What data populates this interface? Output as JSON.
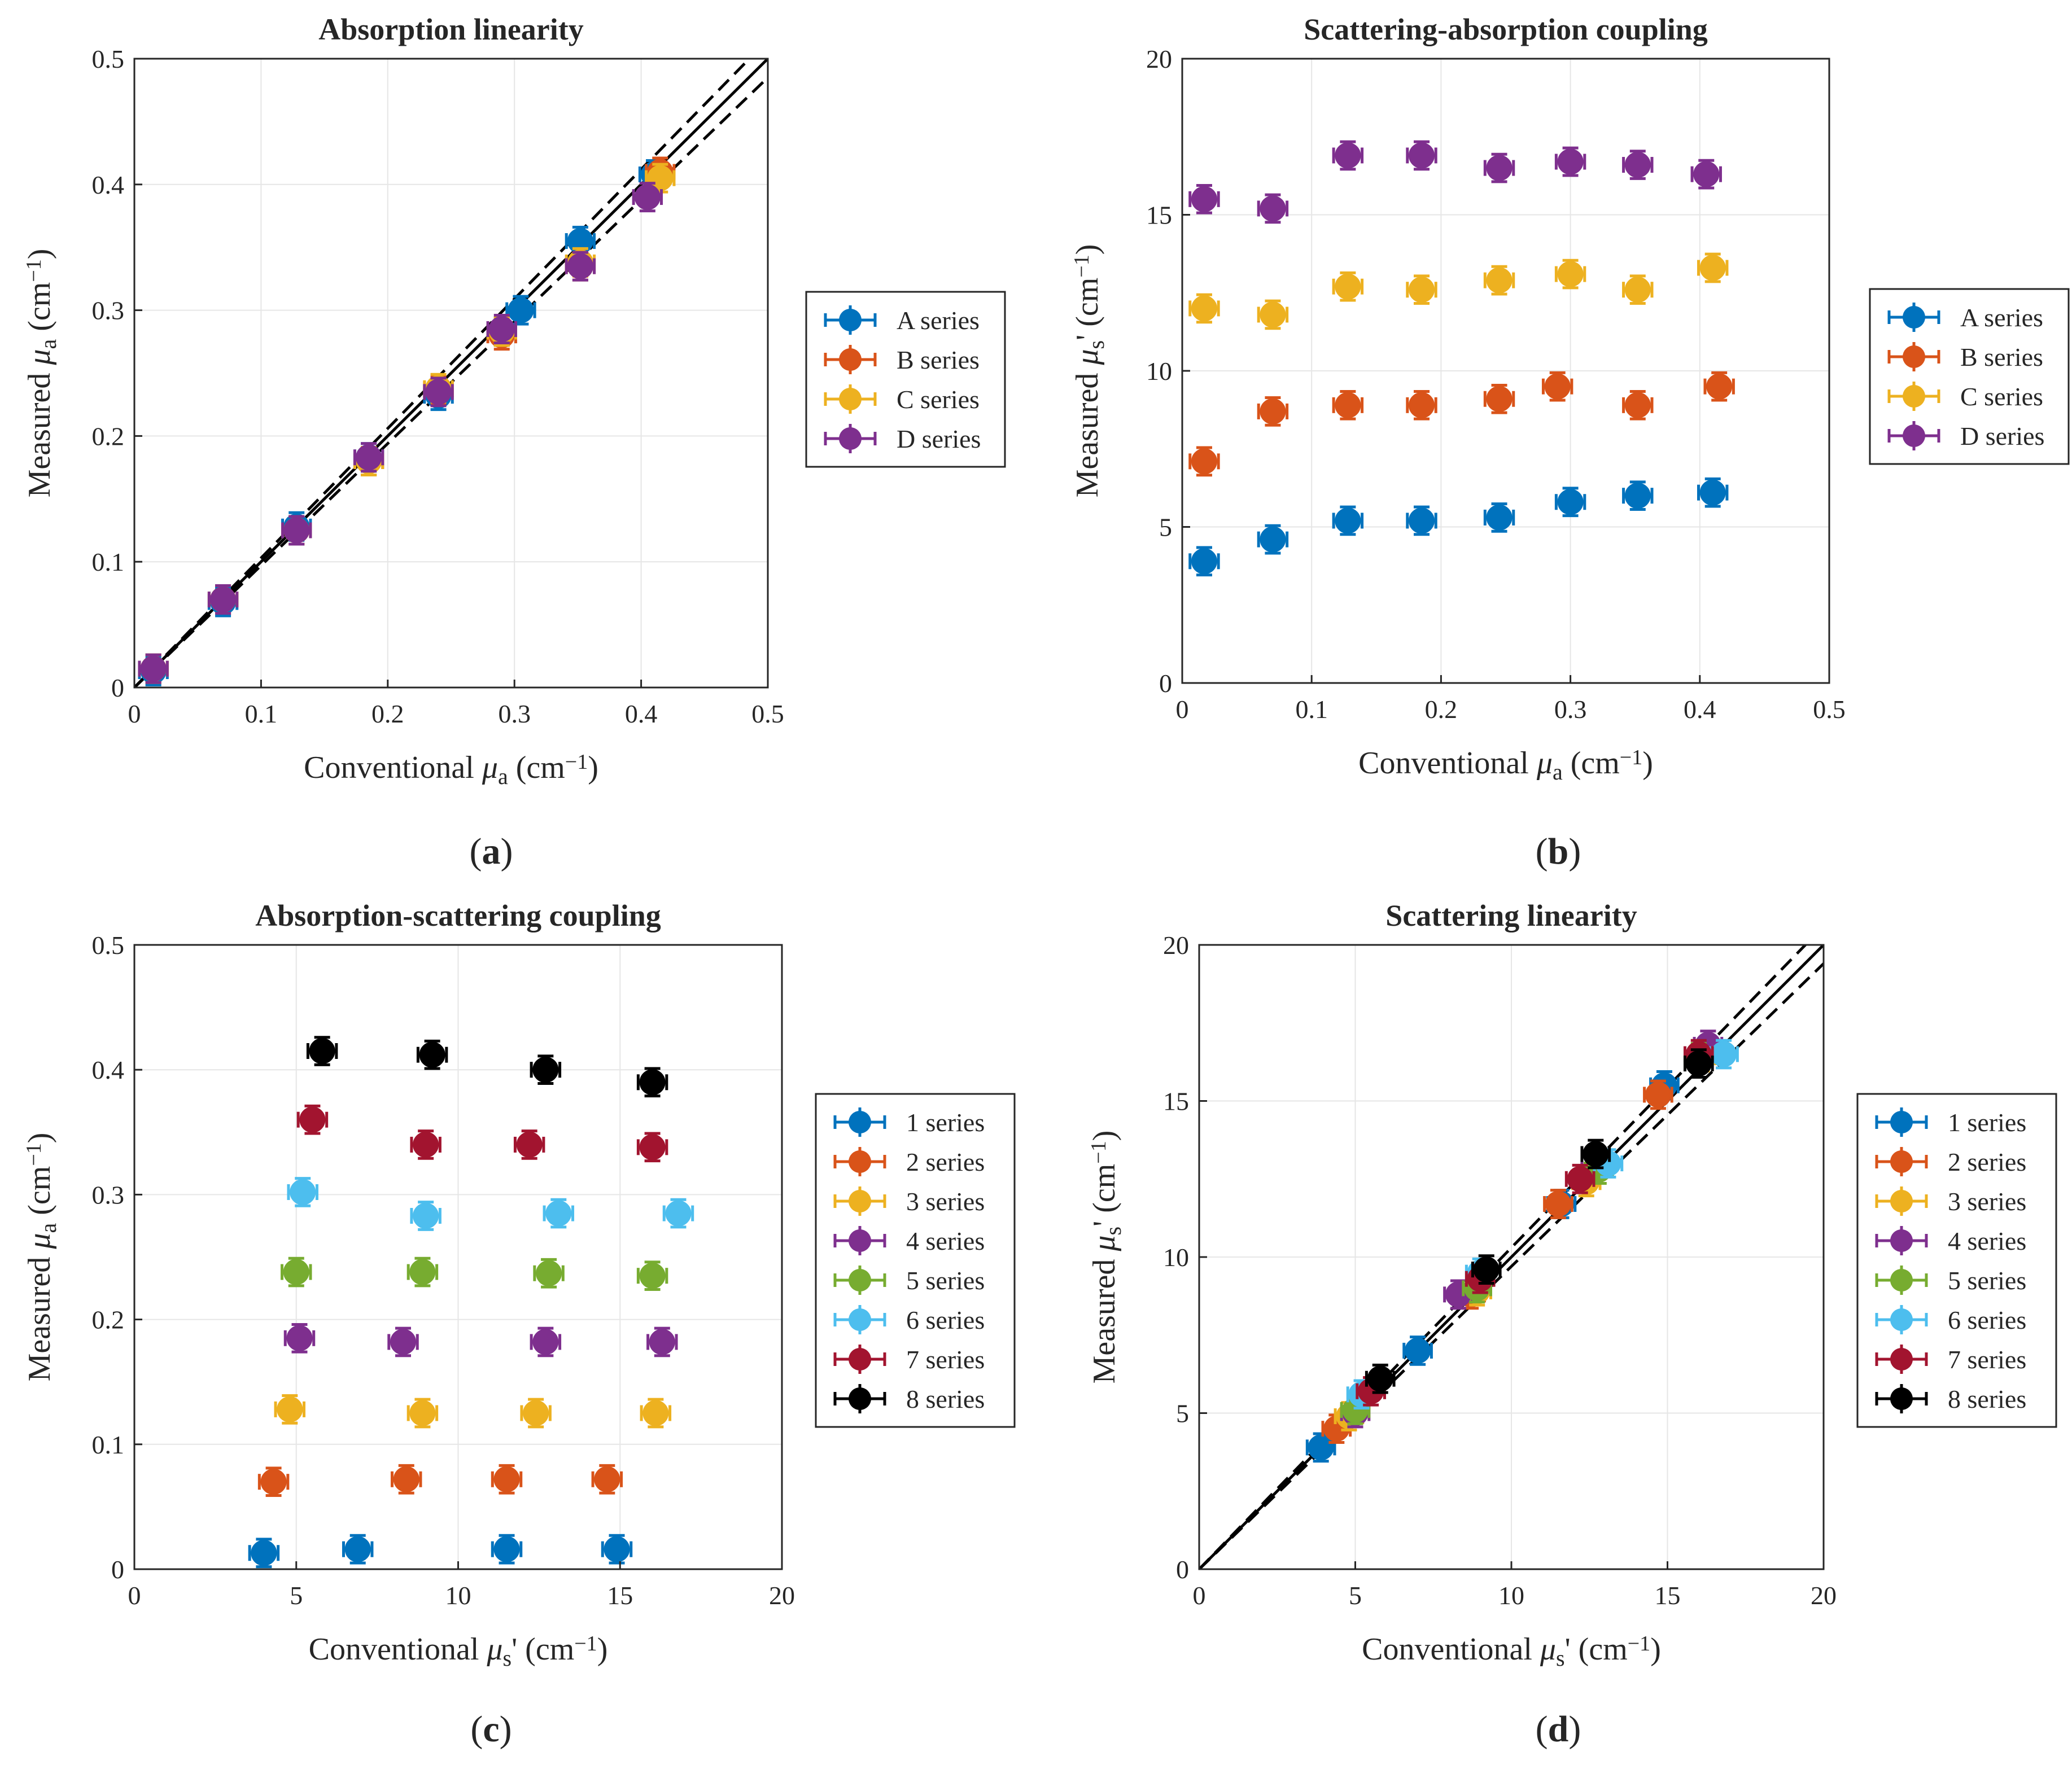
{
  "chart_data": [
    {
      "panel": "(a)",
      "type": "scatter",
      "title": "Absorption linearity",
      "xlabel": "Conventional μa (cm−1)",
      "ylabel": "Measured μa (cm−1)",
      "xlim": [
        0,
        0.5
      ],
      "ylim": [
        0,
        0.5
      ],
      "xticks": [
        0,
        0.1,
        0.2,
        0.3,
        0.4,
        0.5
      ],
      "yticks": [
        0,
        0.1,
        0.2,
        0.3,
        0.4,
        0.5
      ],
      "grid": true,
      "legend_position": "outside-right",
      "reference_lines": {
        "identity": true,
        "bounds_pct": 3
      },
      "series": [
        {
          "name": "A series",
          "color": "#0072BD",
          "x": [
            0.015,
            0.07,
            0.128,
            0.185,
            0.24,
            0.29,
            0.305,
            0.352,
            0.41
          ],
          "y": [
            0.013,
            0.068,
            0.128,
            0.183,
            0.232,
            0.283,
            0.3,
            0.355,
            0.408
          ]
        },
        {
          "name": "B series",
          "color": "#D95319",
          "x": [
            0.015,
            0.07,
            0.128,
            0.185,
            0.24,
            0.29,
            0.352,
            0.415
          ],
          "y": [
            0.015,
            0.07,
            0.125,
            0.18,
            0.237,
            0.28,
            0.335,
            0.41
          ]
        },
        {
          "name": "C series",
          "color": "#EDB120",
          "x": [
            0.015,
            0.07,
            0.128,
            0.185,
            0.24,
            0.29,
            0.352,
            0.415
          ],
          "y": [
            0.015,
            0.07,
            0.125,
            0.18,
            0.238,
            0.283,
            0.338,
            0.405
          ]
        },
        {
          "name": "D series",
          "color": "#7E2F8E",
          "x": [
            0.015,
            0.07,
            0.128,
            0.185,
            0.24,
            0.29,
            0.352,
            0.405
          ],
          "y": [
            0.015,
            0.07,
            0.125,
            0.183,
            0.235,
            0.285,
            0.335,
            0.39
          ]
        }
      ]
    },
    {
      "panel": "(b)",
      "type": "scatter",
      "title": "Scattering-absorption coupling",
      "xlabel": "Conventional μa (cm−1)",
      "ylabel": "Measured μs' (cm−1)",
      "xlim": [
        0,
        0.5
      ],
      "ylim": [
        0,
        20
      ],
      "xticks": [
        0,
        0.1,
        0.2,
        0.3,
        0.4,
        0.5
      ],
      "yticks": [
        0,
        5,
        10,
        15,
        20
      ],
      "grid": true,
      "legend_position": "outside-right",
      "series": [
        {
          "name": "A series",
          "color": "#0072BD",
          "x": [
            0.017,
            0.07,
            0.128,
            0.185,
            0.245,
            0.3,
            0.352,
            0.41
          ],
          "y": [
            3.9,
            4.6,
            5.2,
            5.2,
            5.3,
            5.8,
            6.0,
            6.1
          ]
        },
        {
          "name": "B series",
          "color": "#D95319",
          "x": [
            0.017,
            0.07,
            0.128,
            0.185,
            0.245,
            0.29,
            0.352,
            0.415
          ],
          "y": [
            7.1,
            8.7,
            8.9,
            8.9,
            9.1,
            9.5,
            8.9,
            9.5
          ]
        },
        {
          "name": "C series",
          "color": "#EDB120",
          "x": [
            0.017,
            0.07,
            0.128,
            0.185,
            0.245,
            0.3,
            0.352,
            0.41
          ],
          "y": [
            12.0,
            11.8,
            12.7,
            12.6,
            12.9,
            13.1,
            12.6,
            13.3
          ]
        },
        {
          "name": "D series",
          "color": "#7E2F8E",
          "x": [
            0.017,
            0.07,
            0.128,
            0.185,
            0.245,
            0.3,
            0.352,
            0.405
          ],
          "y": [
            15.5,
            15.2,
            16.9,
            16.9,
            16.5,
            16.7,
            16.6,
            16.3
          ]
        }
      ]
    },
    {
      "panel": "(c)",
      "type": "scatter",
      "title": "Absorption-scattering coupling",
      "xlabel": "Conventional μs' (cm−1)",
      "ylabel": "Measured μa (cm−1)",
      "xlim": [
        0,
        20
      ],
      "ylim": [
        0,
        0.5
      ],
      "xticks": [
        0,
        5,
        10,
        15,
        20
      ],
      "yticks": [
        0,
        0.1,
        0.2,
        0.3,
        0.4,
        0.5
      ],
      "grid": true,
      "legend_position": "outside-right",
      "series": [
        {
          "name": "1 series",
          "color": "#0072BD",
          "x": [
            4.0,
            6.9,
            11.5,
            14.9
          ],
          "y": [
            0.013,
            0.016,
            0.016,
            0.016
          ]
        },
        {
          "name": "2 series",
          "color": "#D95319",
          "x": [
            4.3,
            8.4,
            11.5,
            14.6
          ],
          "y": [
            0.07,
            0.072,
            0.072,
            0.072
          ]
        },
        {
          "name": "3 series",
          "color": "#EDB120",
          "x": [
            4.8,
            8.9,
            12.4,
            16.1
          ],
          "y": [
            0.128,
            0.125,
            0.125,
            0.125
          ]
        },
        {
          "name": "4 series",
          "color": "#7E2F8E",
          "x": [
            5.1,
            8.3,
            12.7,
            16.3
          ],
          "y": [
            0.185,
            0.182,
            0.182,
            0.182
          ]
        },
        {
          "name": "5 series",
          "color": "#77AC30",
          "x": [
            5.0,
            8.9,
            12.8,
            16.0
          ],
          "y": [
            0.238,
            0.238,
            0.237,
            0.235
          ]
        },
        {
          "name": "6 series",
          "color": "#4DBEEE",
          "x": [
            5.2,
            9.0,
            13.1,
            16.8
          ],
          "y": [
            0.302,
            0.283,
            0.285,
            0.285
          ]
        },
        {
          "name": "7 series",
          "color": "#A2142F",
          "x": [
            5.5,
            9.0,
            12.2,
            16.0
          ],
          "y": [
            0.36,
            0.34,
            0.34,
            0.338
          ]
        },
        {
          "name": "8 series",
          "color": "#000000",
          "x": [
            5.8,
            9.2,
            12.7,
            16.0
          ],
          "y": [
            0.415,
            0.412,
            0.4,
            0.39
          ]
        }
      ]
    },
    {
      "panel": "(d)",
      "type": "scatter",
      "title": "Scattering linearity",
      "xlabel": "Conventional μs' (cm−1)",
      "ylabel": "Measured μs' (cm−1)",
      "xlim": [
        0,
        20
      ],
      "ylim": [
        0,
        20
      ],
      "xticks": [
        0,
        5,
        10,
        15,
        20
      ],
      "yticks": [
        0,
        5,
        10,
        15,
        20
      ],
      "grid": true,
      "legend_position": "outside-right",
      "reference_lines": {
        "identity": true,
        "bounds_pct": 3
      },
      "series": [
        {
          "name": "1 series",
          "color": "#0072BD",
          "x": [
            3.9,
            7.0,
            11.6,
            14.9
          ],
          "y": [
            3.9,
            7.0,
            11.7,
            15.5
          ]
        },
        {
          "name": "2 series",
          "color": "#D95319",
          "x": [
            4.4,
            8.7,
            11.5,
            14.7
          ],
          "y": [
            4.5,
            8.8,
            11.7,
            15.2
          ]
        },
        {
          "name": "3 series",
          "color": "#EDB120",
          "x": [
            4.8,
            8.9,
            12.4,
            16.1
          ],
          "y": [
            4.9,
            8.9,
            12.4,
            16.4
          ]
        },
        {
          "name": "4 series",
          "color": "#7E2F8E",
          "x": [
            5.0,
            8.3,
            12.7,
            16.3
          ],
          "y": [
            5.0,
            8.8,
            12.8,
            16.8
          ]
        },
        {
          "name": "5 series",
          "color": "#77AC30",
          "x": [
            5.0,
            8.9,
            12.8,
            16.0
          ],
          "y": [
            5.1,
            9.0,
            12.8,
            16.4
          ]
        },
        {
          "name": "6 series",
          "color": "#4DBEEE",
          "x": [
            5.2,
            9.0,
            13.1,
            16.8
          ],
          "y": [
            5.6,
            9.5,
            13.0,
            16.5
          ]
        },
        {
          "name": "7 series",
          "color": "#A2142F",
          "x": [
            5.5,
            9.0,
            12.2,
            16.0
          ],
          "y": [
            5.7,
            9.3,
            12.5,
            16.5
          ]
        },
        {
          "name": "8 series",
          "color": "#000000",
          "x": [
            5.8,
            9.2,
            12.7,
            16.0
          ],
          "y": [
            6.1,
            9.6,
            13.3,
            16.2
          ]
        }
      ]
    }
  ]
}
